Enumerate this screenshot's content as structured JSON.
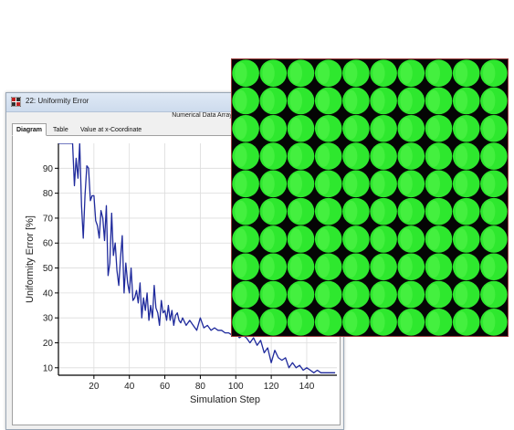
{
  "window": {
    "title": "22: Uniformity Error",
    "group_label": "Numerical Data Array",
    "tabs": [
      {
        "label": "Diagram",
        "active": true
      },
      {
        "label": "Table",
        "active": false
      },
      {
        "label": "Value at x-Coordinate",
        "active": false
      }
    ]
  },
  "chart_data": {
    "type": "line",
    "xlabel": "Simulation Step",
    "ylabel": "Uniformity Error [%]",
    "xlim": [
      0,
      157
    ],
    "ylim": [
      7,
      100
    ],
    "xticks": [
      20,
      40,
      60,
      80,
      100,
      120,
      140
    ],
    "yticks": [
      10,
      20,
      30,
      40,
      50,
      60,
      70,
      80,
      90
    ],
    "line_color": "#1f2a9c",
    "series": [
      {
        "x": [
          0,
          5,
          8,
          9,
          10,
          11,
          12,
          13,
          14,
          15,
          16,
          17,
          18,
          19,
          20,
          21,
          22,
          23,
          24,
          25,
          26,
          27,
          28,
          29,
          30,
          31,
          32,
          33,
          34,
          35,
          36,
          37,
          38,
          39,
          40,
          41,
          42,
          43,
          44,
          45,
          46,
          47,
          48,
          49,
          50,
          51,
          52,
          53,
          54,
          55,
          56,
          57,
          58,
          59,
          60,
          61,
          62,
          63,
          64,
          65,
          66,
          67,
          68,
          69,
          70,
          72,
          74,
          76,
          78,
          80,
          82,
          84,
          86,
          88,
          90,
          92,
          94,
          96,
          98,
          100,
          102,
          104,
          106,
          108,
          110,
          112,
          114,
          116,
          118,
          120,
          122,
          124,
          126,
          128,
          130,
          132,
          134,
          136,
          138,
          140,
          142,
          144,
          146,
          148,
          150,
          152,
          154,
          156
        ],
        "y": [
          100,
          100,
          100,
          83,
          94,
          86,
          100,
          75,
          62,
          79,
          91,
          90,
          77,
          79,
          79,
          69,
          67,
          62,
          73,
          70,
          61,
          75,
          47,
          52,
          72,
          55,
          60,
          49,
          43,
          54,
          63,
          40,
          52,
          44,
          40,
          50,
          37,
          38,
          41,
          36,
          44,
          30,
          38,
          33,
          40,
          29,
          35,
          30,
          43,
          34,
          32,
          27,
          37,
          32,
          33,
          29,
          35,
          29,
          33,
          27,
          31,
          32,
          29,
          28,
          30,
          27,
          29,
          27,
          25,
          30,
          26,
          27,
          25,
          26,
          25,
          25,
          24,
          24,
          23,
          24,
          22,
          23,
          22,
          20,
          22,
          19,
          21,
          16,
          18,
          12,
          17,
          14,
          13,
          14,
          10,
          12,
          10,
          11,
          9,
          10,
          9,
          8,
          9,
          8,
          8,
          8,
          8,
          8
        ]
      }
    ]
  },
  "green_panel": {
    "cols": 10,
    "rows": 10,
    "circle_color": "#2ee82e",
    "highlight_color": "#6dff5e",
    "background_color": "#050505",
    "border_color": "#9b3d3d"
  }
}
